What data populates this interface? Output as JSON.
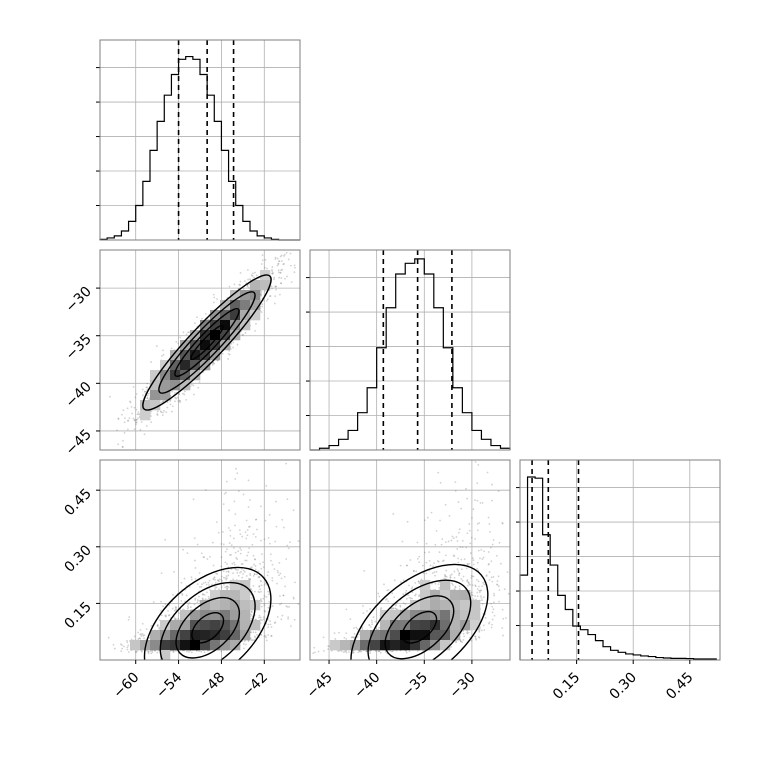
{
  "chart_data": {
    "type": "corner",
    "colors": {
      "hist": "#000000",
      "grid": "#b0b0b0",
      "points": "#7f7f7f",
      "frame": "#7f7f7f",
      "contour": "#000000"
    },
    "parameters": [
      {
        "range": [
          -65,
          -37
        ],
        "ticks": [
          -60,
          -54,
          -48,
          -42
        ],
        "tick_labels": [
          "−60",
          "−54",
          "−48",
          "−42"
        ]
      },
      {
        "range": [
          -47,
          -26
        ],
        "ticks": [
          -45,
          -40,
          -35,
          -30
        ],
        "tick_labels": [
          "−45",
          "−40",
          "−35",
          "−30"
        ]
      },
      {
        "range": [
          0.0,
          0.53
        ],
        "ticks": [
          0.15,
          0.3,
          0.45
        ],
        "tick_labels": [
          "0.15",
          "0.30",
          "0.45"
        ]
      }
    ],
    "grid": true,
    "diagonal": [
      {
        "bin_edges": [
          -65.0,
          -64.0,
          -63.0,
          -62.0,
          -61.0,
          -60.0,
          -59.0,
          -58.0,
          -57.0,
          -56.0,
          -55.0,
          -54.0,
          -53.0,
          -52.0,
          -51.0,
          -50.0,
          -49.0,
          -48.0,
          -47.0,
          -46.0,
          -45.0,
          -44.0,
          -43.0,
          -42.0,
          -41.0,
          -40.0,
          -39.0,
          -38.0,
          -37.0
        ],
        "counts": [
          1,
          3,
          6,
          13,
          27,
          50,
          85,
          130,
          172,
          210,
          240,
          262,
          266,
          262,
          240,
          210,
          172,
          130,
          85,
          50,
          27,
          13,
          6,
          3,
          1,
          0,
          0,
          0
        ],
        "quantiles": [
          -54.0,
          -50.0,
          -46.3
        ],
        "ylim": [
          0,
          290
        ]
      },
      {
        "bin_edges": [
          -47.0,
          -46.0,
          -45.0,
          -44.0,
          -43.0,
          -42.0,
          -41.0,
          -40.0,
          -39.0,
          -38.0,
          -37.0,
          -36.0,
          -35.0,
          -34.0,
          -33.0,
          -32.0,
          -31.0,
          -30.0,
          -29.0,
          -28.0,
          -27.0,
          -26.0
        ],
        "counts": [
          0,
          2,
          5,
          12,
          22,
          42,
          70,
          115,
          160,
          198,
          210,
          215,
          198,
          160,
          115,
          70,
          42,
          22,
          12,
          5,
          2
        ],
        "quantiles": [
          -39.3,
          -35.7,
          -32.1
        ],
        "ylim": [
          0,
          225
        ]
      },
      {
        "bin_edges": [
          0.0,
          0.02,
          0.04,
          0.06,
          0.08,
          0.1,
          0.12,
          0.14,
          0.16,
          0.18,
          0.2,
          0.22,
          0.24,
          0.26,
          0.28,
          0.3,
          0.32,
          0.34,
          0.36,
          0.38,
          0.4,
          0.42,
          0.44,
          0.46,
          0.48,
          0.5,
          0.52
        ],
        "counts": [
          420,
          906,
          900,
          620,
          470,
          320,
          250,
          168,
          150,
          126,
          96,
          66,
          48,
          38,
          30,
          25,
          20,
          17,
          12,
          10,
          8,
          8,
          7,
          5,
          5,
          5
        ],
        "quantiles": [
          0.032,
          0.075,
          0.155
        ],
        "ylim": [
          0,
          990
        ]
      }
    ],
    "pairs": [
      {
        "row": 1,
        "col": 0,
        "mean": [
          -50.0,
          -35.7
        ],
        "sd": [
          4.4,
          3.5
        ],
        "rho": 0.93,
        "skew": false,
        "seed": 11
      },
      {
        "row": 2,
        "col": 0,
        "mean": [
          -50.0,
          0.08
        ],
        "sd": [
          4.4,
          0.07
        ],
        "rho": 0.55,
        "skew": true,
        "seed": 23
      },
      {
        "row": 2,
        "col": 1,
        "mean": [
          -35.7,
          0.08
        ],
        "sd": [
          3.5,
          0.07
        ],
        "rho": 0.6,
        "skew": true,
        "seed": 37
      }
    ]
  }
}
